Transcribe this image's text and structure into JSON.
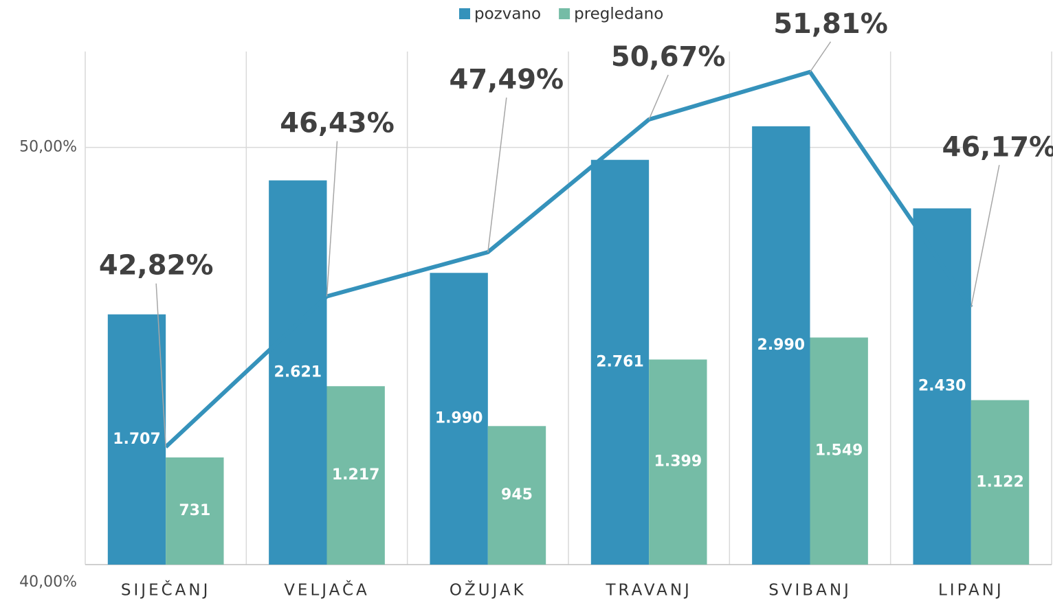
{
  "chart_data": {
    "type": "bar_line",
    "categories": [
      "SIJEČANJ",
      "VELJAČA",
      "OŽUJAK",
      "TRAVANJ",
      "SVIBANJ",
      "LIPANJ"
    ],
    "series": [
      {
        "name": "pozvano",
        "type": "bar",
        "axis": "y2",
        "color": "#3592bb",
        "values": [
          1707,
          2621,
          1990,
          2761,
          2990,
          2430
        ],
        "value_labels": [
          "1.707",
          "2.621",
          "1.990",
          "2.761",
          "2.990",
          "2.430"
        ]
      },
      {
        "name": "pregledano",
        "type": "bar",
        "axis": "y2",
        "color": "#75bca6",
        "values": [
          731,
          1217,
          945,
          1399,
          1549,
          1122
        ],
        "value_labels": [
          "731",
          "1.217",
          "945",
          "1.399",
          "1.549",
          "1.122"
        ]
      },
      {
        "type": "line",
        "axis": "y",
        "color": "#3592bb",
        "values": [
          42.82,
          46.43,
          47.49,
          50.67,
          51.81,
          46.17
        ],
        "value_labels": [
          "42,82%",
          "46,43%",
          "47,49%",
          "50,67%",
          "51,81%",
          "46,17%"
        ]
      }
    ],
    "ylim": [
      40,
      52.3
    ],
    "yticks": [
      {
        "value": 40,
        "label": "40,00%"
      },
      {
        "value": 50,
        "label": "50,00%"
      }
    ],
    "y2lim": [
      0,
      3500
    ],
    "grid": true,
    "legend": "top"
  }
}
